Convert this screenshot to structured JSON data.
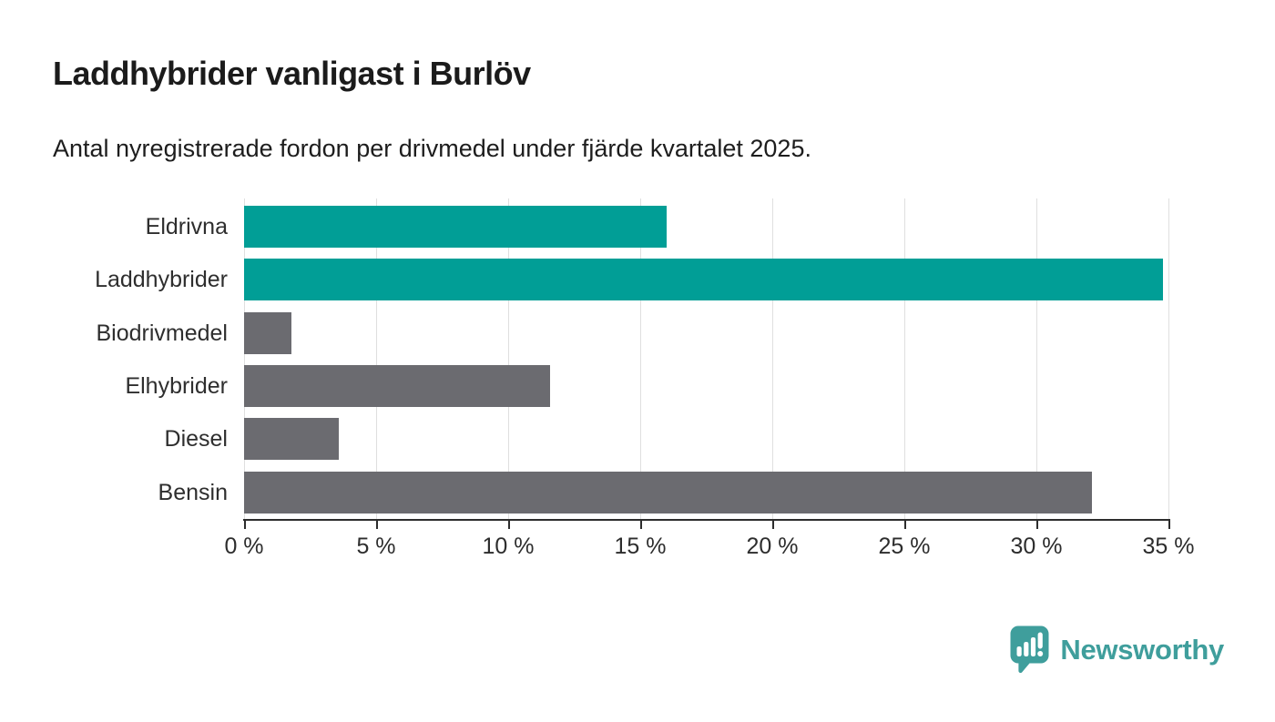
{
  "header": {
    "title": "Laddhybrider vanligast i Burlöv",
    "subtitle": "Antal nyregistrerade fordon per drivmedel under fjärde kvartalet 2025."
  },
  "chart_data": {
    "type": "bar",
    "orientation": "horizontal",
    "title": "Laddhybrider vanligast i Burlöv",
    "subtitle": "Antal nyregistrerade fordon per drivmedel under fjärde kvartalet 2025.",
    "categories": [
      "Eldrivna",
      "Laddhybrider",
      "Biodrivmedel",
      "Elhybrider",
      "Diesel",
      "Bensin"
    ],
    "values": [
      16.0,
      34.8,
      1.8,
      11.6,
      3.6,
      32.1
    ],
    "unit": "%",
    "colors": [
      "#019e96",
      "#019e96",
      "#6b6b70",
      "#6b6b70",
      "#6b6b70",
      "#6b6b70"
    ],
    "highlight_color": "#019e96",
    "default_color": "#6b6b70",
    "xlabel": "",
    "ylabel": "",
    "xlim": [
      0,
      35
    ],
    "x_tick_values": [
      0,
      5,
      10,
      15,
      20,
      25,
      30,
      35
    ],
    "x_tick_labels": [
      "0 %",
      "5 %",
      "10 %",
      "15 %",
      "20 %",
      "25 %",
      "30 %",
      "35 %"
    ],
    "grid": true,
    "legend": "none"
  },
  "branding": {
    "name": "Newsworthy",
    "logo_color": "#3f9e9c"
  }
}
